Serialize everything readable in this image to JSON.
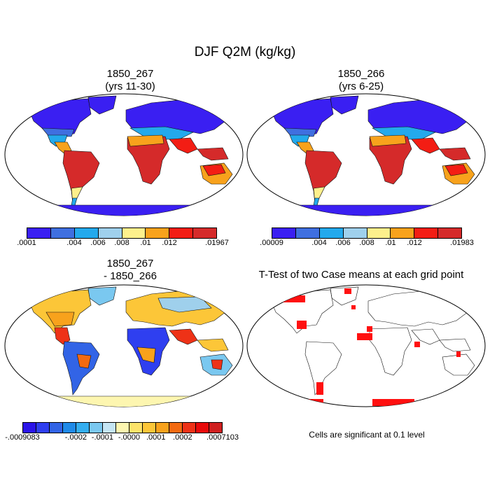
{
  "title": "DJF Q2M (kg/kg)",
  "panels": [
    {
      "id": "p1",
      "title_line1": "1850_267",
      "title_line2": "(yrs 11-30)",
      "colorbar_colors": [
        "#3a1ff2",
        "#3f6fe0",
        "#23a9ec",
        "#9fd0ec",
        "#fdf08c",
        "#f8a21c",
        "#f31d14",
        "#d52a2a"
      ],
      "colorbar_labels": [
        ".0001",
        ".004",
        ".006",
        ".008",
        ".01",
        ".012",
        ".01967"
      ]
    },
    {
      "id": "p2",
      "title_line1": "1850_266",
      "title_line2": "(yrs 6-25)",
      "colorbar_colors": [
        "#3a1ff2",
        "#3f6fe0",
        "#23a9ec",
        "#9fd0ec",
        "#fdf08c",
        "#f8a21c",
        "#f31d14",
        "#d52a2a"
      ],
      "colorbar_labels": [
        ".00009",
        ".004",
        ".006",
        ".008",
        ".01",
        ".012",
        ".01983"
      ]
    },
    {
      "id": "p3",
      "title_line1": "1850_267",
      "title_line2": "- 1850_266",
      "colorbar_colors": [
        "#2b14e8",
        "#2f3ff0",
        "#3264e6",
        "#1f8ae8",
        "#34aef0",
        "#7ac8f0",
        "#c5e5f4",
        "#fdf6b0",
        "#fde36a",
        "#fcc638",
        "#f8a21c",
        "#f46a10",
        "#ee3217",
        "#e80a0a",
        "#cf1f1f"
      ],
      "colorbar_labels": [
        "-.0009083",
        "-.0002",
        "-.0001",
        "-.0000",
        ".0001",
        ".0002",
        ".0007103"
      ]
    },
    {
      "id": "p4",
      "title_line1": "T-Test of two Case means at each grid point",
      "note": "Cells are significant at 0.1 level"
    }
  ]
}
